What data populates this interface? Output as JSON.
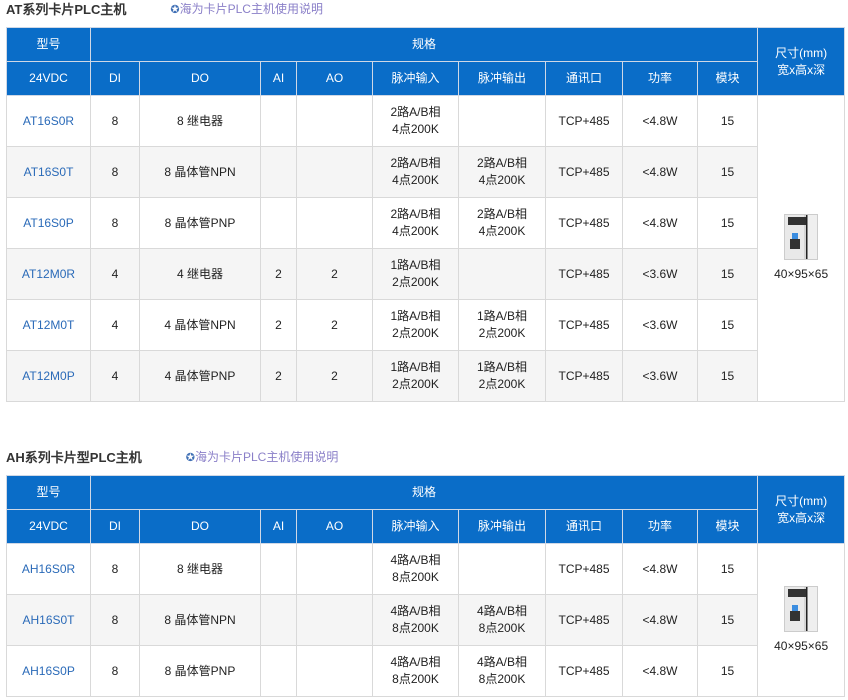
{
  "sections": [
    {
      "title": "AT系列卡片PLC主机",
      "link_icon": "gear-icon",
      "link": "海为卡片PLC主机使用说明",
      "header": {
        "model": "型号",
        "spec": "规格",
        "size": "尺寸(mm)\n宽x高x深",
        "cols": [
          "24VDC",
          "DI",
          "DO",
          "AI",
          "AO",
          "脉冲输入",
          "脉冲输出",
          "通讯口",
          "功率",
          "模块"
        ]
      },
      "size_value": "40×95×65",
      "rows": [
        [
          "AT16S0R",
          "8",
          "8  继电器",
          "",
          "",
          "2路A/B相\n4点200K",
          "",
          "TCP+485",
          "<4.8W",
          "15"
        ],
        [
          "AT16S0T",
          "8",
          "8 晶体管NPN",
          "",
          "",
          "2路A/B相\n4点200K",
          "2路A/B相\n4点200K",
          "TCP+485",
          "<4.8W",
          "15"
        ],
        [
          "AT16S0P",
          "8",
          "8 晶体管PNP",
          "",
          "",
          "2路A/B相\n4点200K",
          "2路A/B相\n4点200K",
          "TCP+485",
          "<4.8W",
          "15"
        ],
        [
          "AT12M0R",
          "4",
          "4 继电器",
          "2",
          "2",
          "1路A/B相\n2点200K",
          "",
          "TCP+485",
          "<3.6W",
          "15"
        ],
        [
          "AT12M0T",
          "4",
          "4 晶体管NPN",
          "2",
          "2",
          "1路A/B相\n2点200K",
          "1路A/B相\n2点200K",
          "TCP+485",
          "<3.6W",
          "15"
        ],
        [
          "AT12M0P",
          "4",
          "4 晶体管PNP",
          "2",
          "2",
          "1路A/B相\n2点200K",
          "1路A/B相\n2点200K",
          "TCP+485",
          "<3.6W",
          "15"
        ]
      ]
    },
    {
      "title": "AH系列卡片型PLC主机",
      "link_icon": "gear-icon",
      "link": "海为卡片PLC主机使用说明",
      "header": {
        "model": "型号",
        "spec": "规格",
        "size": "尺寸(mm)\n宽x高x深",
        "cols": [
          "24VDC",
          "DI",
          "DO",
          "AI",
          "AO",
          "脉冲输入",
          "脉冲输出",
          "通讯口",
          "功率",
          "模块"
        ]
      },
      "size_value": "40×95×65",
      "rows": [
        [
          "AH16S0R",
          "8",
          "8  继电器",
          "",
          "",
          "4路A/B相\n8点200K",
          "",
          "TCP+485",
          "<4.8W",
          "15"
        ],
        [
          "AH16S0T",
          "8",
          "8 晶体管NPN",
          "",
          "",
          "4路A/B相\n8点200K",
          "4路A/B相\n8点200K",
          "TCP+485",
          "<4.8W",
          "15"
        ],
        [
          "AH16S0P",
          "8",
          "8 晶体管PNP",
          "",
          "",
          "4路A/B相\n8点200K",
          "4路A/B相\n8点200K",
          "TCP+485",
          "<4.8W",
          "15"
        ]
      ]
    }
  ]
}
